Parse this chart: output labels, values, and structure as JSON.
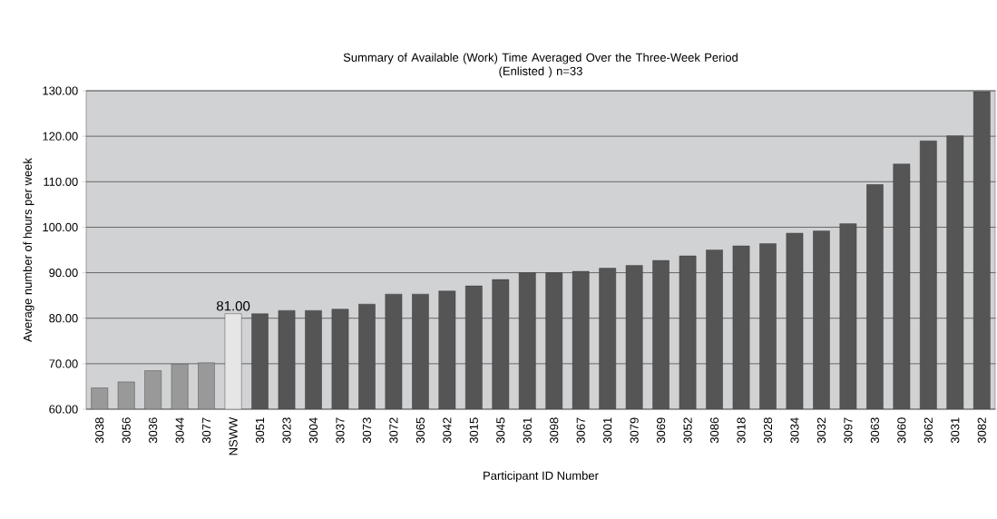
{
  "chart_data": {
    "type": "bar",
    "title": "Summary of Available (Work) Time Averaged Over the Three-Week Period",
    "subtitle": "(Enlisted ) n=33",
    "xlabel": "Participant ID Number",
    "ylabel": "Average number of hours per week",
    "categories": [
      "3038",
      "3056",
      "3036",
      "3044",
      "3077",
      "NSWW",
      "3051",
      "3023",
      "3004",
      "3037",
      "3073",
      "3072",
      "3065",
      "3042",
      "3015",
      "3045",
      "3061",
      "3098",
      "3067",
      "3001",
      "3079",
      "3069",
      "3052",
      "3086",
      "3018",
      "3028",
      "3034",
      "3032",
      "3097",
      "3063",
      "3060",
      "3062",
      "3031",
      "3082"
    ],
    "values": [
      64.7,
      66.0,
      68.5,
      69.9,
      70.2,
      81.0,
      81.0,
      81.7,
      81.7,
      82.0,
      83.1,
      85.3,
      85.3,
      86.0,
      87.1,
      88.5,
      90.0,
      90.0,
      90.3,
      91.0,
      91.6,
      92.7,
      93.7,
      95.0,
      95.9,
      96.4,
      98.7,
      99.2,
      100.8,
      109.4,
      113.9,
      119.0,
      120.1,
      129.8
    ],
    "colors": [
      "#999999",
      "#999999",
      "#999999",
      "#999999",
      "#999999",
      "#e6e6e6",
      "#555555",
      "#555555",
      "#555555",
      "#555555",
      "#555555",
      "#555555",
      "#555555",
      "#555555",
      "#555555",
      "#555555",
      "#555555",
      "#555555",
      "#555555",
      "#555555",
      "#555555",
      "#555555",
      "#555555",
      "#555555",
      "#555555",
      "#555555",
      "#555555",
      "#555555",
      "#555555",
      "#555555",
      "#555555",
      "#555555",
      "#555555",
      "#555555"
    ],
    "value_labels": [
      null,
      null,
      null,
      null,
      null,
      "81.00",
      null,
      null,
      null,
      null,
      null,
      null,
      null,
      null,
      null,
      null,
      null,
      null,
      null,
      null,
      null,
      null,
      null,
      null,
      null,
      null,
      null,
      null,
      null,
      null,
      null,
      null,
      null,
      null
    ],
    "ylim": [
      60,
      130
    ],
    "yticks": [
      {
        "value": 60,
        "label": "60.00"
      },
      {
        "value": 70,
        "label": "70.00"
      },
      {
        "value": 80,
        "label": "80.00"
      },
      {
        "value": 90,
        "label": "90.00"
      },
      {
        "value": 100,
        "label": "100.00"
      },
      {
        "value": 110,
        "label": "110.00"
      },
      {
        "value": 120,
        "label": "120.00"
      },
      {
        "value": 130,
        "label": "130.00"
      }
    ],
    "grid": "y"
  }
}
